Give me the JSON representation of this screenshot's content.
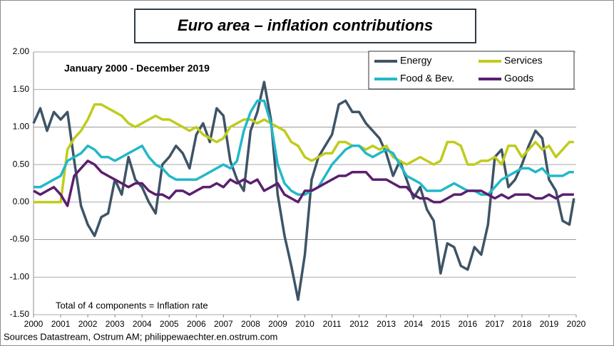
{
  "chart_data": {
    "type": "line",
    "title": "Euro area – inflation contributions",
    "subtitle": "January 2000 - December 2019",
    "annotation": "Total of 4 components = Inflation rate",
    "source": "Sources Datastream, Ostrum AM; philippewaechter.en.ostrum.com",
    "grid": true,
    "legend": "upper right",
    "xlim": [
      2000,
      2020
    ],
    "xticks": [
      2000,
      2001,
      2002,
      2003,
      2004,
      2005,
      2006,
      2007,
      2008,
      2009,
      2010,
      2011,
      2012,
      2013,
      2014,
      2015,
      2016,
      2017,
      2018,
      2019,
      2020
    ],
    "ylim": [
      -1.5,
      2
    ],
    "yticks": [
      {
        "value": 2,
        "label": "2.00"
      },
      {
        "value": 1.5,
        "label": "1.50"
      },
      {
        "value": 1,
        "label": "1.00"
      },
      {
        "value": 0.5,
        "label": "0.50"
      },
      {
        "value": 0,
        "label": "0.00"
      },
      {
        "value": -0.5,
        "label": "-0.50"
      },
      {
        "value": -1,
        "label": "-1.00"
      },
      {
        "value": -1.5,
        "label": "-1.50"
      }
    ],
    "x": [
      2000,
      2000.25,
      2000.5,
      2000.75,
      2001,
      2001.25,
      2001.5,
      2001.75,
      2002,
      2002.25,
      2002.5,
      2002.75,
      2003,
      2003.25,
      2003.5,
      2003.75,
      2004,
      2004.25,
      2004.5,
      2004.75,
      2005,
      2005.25,
      2005.5,
      2005.75,
      2006,
      2006.25,
      2006.5,
      2006.75,
      2007,
      2007.25,
      2007.5,
      2007.75,
      2008,
      2008.25,
      2008.5,
      2008.75,
      2009,
      2009.25,
      2009.5,
      2009.75,
      2010,
      2010.25,
      2010.5,
      2010.75,
      2011,
      2011.25,
      2011.5,
      2011.75,
      2012,
      2012.25,
      2012.5,
      2012.75,
      2013,
      2013.25,
      2013.5,
      2013.75,
      2014,
      2014.25,
      2014.5,
      2014.75,
      2015,
      2015.25,
      2015.5,
      2015.75,
      2016,
      2016.25,
      2016.5,
      2016.75,
      2017,
      2017.25,
      2017.5,
      2017.75,
      2018,
      2018.25,
      2018.5,
      2018.75,
      2019,
      2019.25,
      2019.5,
      2019.75,
      2019.917
    ],
    "series": [
      {
        "name": "Energy",
        "color": "#3e5466",
        "values": [
          1.05,
          1.25,
          0.95,
          1.2,
          1.1,
          1.2,
          0.55,
          -0.05,
          -0.3,
          -0.45,
          -0.2,
          -0.15,
          0.3,
          0.1,
          0.6,
          0.3,
          0.2,
          0.0,
          -0.15,
          0.5,
          0.6,
          0.75,
          0.65,
          0.45,
          0.9,
          1.05,
          0.8,
          1.25,
          1.15,
          0.55,
          0.3,
          0.15,
          0.95,
          1.2,
          1.6,
          1.1,
          0.1,
          -0.45,
          -0.85,
          -1.3,
          -0.7,
          0.3,
          0.6,
          0.75,
          0.9,
          1.3,
          1.35,
          1.2,
          1.2,
          1.05,
          0.95,
          0.85,
          0.65,
          0.35,
          0.55,
          0.3,
          0.05,
          0.2,
          -0.1,
          -0.25,
          -0.95,
          -0.55,
          -0.6,
          -0.85,
          -0.9,
          -0.6,
          -0.7,
          -0.3,
          0.6,
          0.7,
          0.2,
          0.3,
          0.5,
          0.75,
          0.95,
          0.85,
          0.3,
          0.15,
          -0.25,
          -0.3,
          0.05
        ]
      },
      {
        "name": "Services",
        "color": "#bfcc1c",
        "values": [
          0,
          0,
          0,
          0,
          0,
          0.7,
          0.85,
          0.95,
          1.1,
          1.3,
          1.3,
          1.25,
          1.2,
          1.15,
          1.05,
          1.0,
          1.05,
          1.1,
          1.15,
          1.1,
          1.1,
          1.05,
          1.0,
          0.95,
          1.0,
          0.9,
          0.85,
          0.8,
          0.85,
          1.0,
          1.05,
          1.1,
          1.1,
          1.05,
          1.1,
          1.05,
          1.0,
          0.95,
          0.8,
          0.75,
          0.6,
          0.55,
          0.6,
          0.65,
          0.65,
          0.8,
          0.8,
          0.75,
          0.75,
          0.7,
          0.75,
          0.7,
          0.75,
          0.6,
          0.55,
          0.5,
          0.55,
          0.6,
          0.55,
          0.5,
          0.55,
          0.8,
          0.8,
          0.75,
          0.5,
          0.5,
          0.55,
          0.55,
          0.6,
          0.5,
          0.75,
          0.75,
          0.6,
          0.7,
          0.8,
          0.7,
          0.75,
          0.6,
          0.7,
          0.8,
          0.8
        ]
      },
      {
        "name": "Food & Bev.",
        "color": "#22b8c9",
        "values": [
          0.2,
          0.2,
          0.25,
          0.3,
          0.35,
          0.55,
          0.6,
          0.65,
          0.75,
          0.7,
          0.6,
          0.6,
          0.55,
          0.6,
          0.65,
          0.7,
          0.75,
          0.6,
          0.5,
          0.45,
          0.35,
          0.3,
          0.3,
          0.3,
          0.3,
          0.35,
          0.4,
          0.45,
          0.5,
          0.45,
          0.55,
          0.95,
          1.2,
          1.35,
          1.35,
          1.05,
          0.5,
          0.25,
          0.15,
          0.1,
          0.1,
          0.15,
          0.2,
          0.35,
          0.5,
          0.6,
          0.7,
          0.75,
          0.75,
          0.65,
          0.6,
          0.65,
          0.7,
          0.65,
          0.5,
          0.35,
          0.3,
          0.25,
          0.15,
          0.15,
          0.15,
          0.2,
          0.25,
          0.2,
          0.15,
          0.15,
          0.1,
          0.1,
          0.2,
          0.3,
          0.35,
          0.4,
          0.45,
          0.45,
          0.4,
          0.45,
          0.35,
          0.35,
          0.35,
          0.4,
          0.4
        ]
      },
      {
        "name": "Goods",
        "color": "#5b1f6e",
        "values": [
          0.15,
          0.1,
          0.15,
          0.2,
          0.1,
          -0.05,
          0.35,
          0.45,
          0.55,
          0.5,
          0.4,
          0.35,
          0.3,
          0.25,
          0.2,
          0.25,
          0.25,
          0.15,
          0.1,
          0.1,
          0.05,
          0.15,
          0.15,
          0.1,
          0.15,
          0.2,
          0.2,
          0.25,
          0.2,
          0.3,
          0.25,
          0.3,
          0.25,
          0.3,
          0.15,
          0.2,
          0.25,
          0.1,
          0.05,
          0.0,
          0.15,
          0.15,
          0.2,
          0.25,
          0.3,
          0.35,
          0.35,
          0.4,
          0.4,
          0.4,
          0.3,
          0.3,
          0.3,
          0.25,
          0.2,
          0.2,
          0.1,
          0.05,
          0.05,
          0.0,
          0.0,
          0.05,
          0.1,
          0.1,
          0.15,
          0.15,
          0.15,
          0.1,
          0.05,
          0.1,
          0.05,
          0.1,
          0.1,
          0.1,
          0.05,
          0.05,
          0.1,
          0.05,
          0.1,
          0.1,
          0.1
        ]
      }
    ]
  }
}
